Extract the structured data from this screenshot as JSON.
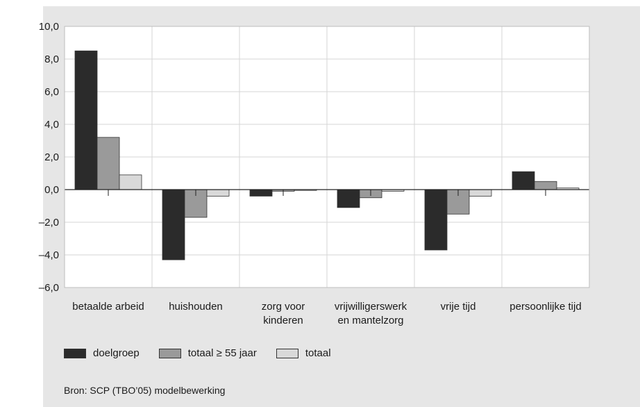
{
  "source": "Bron: SCP (TBO’05) modelbewerking",
  "legend": [
    {
      "label": "doelgroep",
      "color": "#2b2b2b"
    },
    {
      "label": "totaal ≥ 55 jaar",
      "color": "#9a9a9a"
    },
    {
      "label": "totaal",
      "color": "#d9d9d9"
    }
  ],
  "chart_data": {
    "type": "bar",
    "categories": [
      [
        "betaalde arbeid"
      ],
      [
        "huishouden"
      ],
      [
        "zorg voor",
        "kinderen"
      ],
      [
        "vrijwilligerswerk",
        "en mantelzorg"
      ],
      [
        "vrije tijd"
      ],
      [
        "persoonlijke tijd"
      ]
    ],
    "series": [
      {
        "name": "doelgroep",
        "color": "#2b2b2b",
        "values": [
          8.5,
          -4.3,
          -0.4,
          -1.1,
          -3.7,
          1.1
        ]
      },
      {
        "name": "totaal ≥ 55 jaar",
        "color": "#9a9a9a",
        "values": [
          3.2,
          -1.7,
          -0.1,
          -0.5,
          -1.5,
          0.5
        ]
      },
      {
        "name": "totaal",
        "color": "#d9d9d9",
        "values": [
          0.9,
          -0.4,
          -0.05,
          -0.1,
          -0.4,
          0.1
        ]
      }
    ],
    "ylim": [
      -6,
      10
    ],
    "yticks": [
      "10,0",
      "8,0",
      "6,0",
      "4,0",
      "2,0",
      "0,0",
      "–2,0",
      "–4,0",
      "–6,0"
    ],
    "ytick_values": [
      10,
      8,
      6,
      4,
      2,
      0,
      -2,
      -4,
      -6
    ],
    "grid": true
  }
}
